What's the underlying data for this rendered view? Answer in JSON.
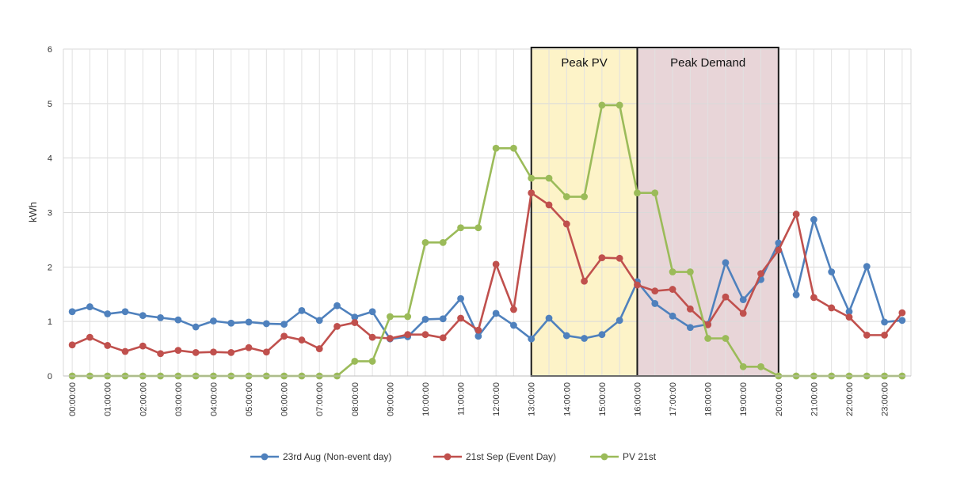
{
  "chart_data": {
    "type": "line",
    "title": "",
    "xlabel": "",
    "ylabel": "kWh",
    "ylim": [
      0,
      6
    ],
    "yticks": [
      "0",
      "1",
      "2",
      "3",
      "4",
      "5",
      "6"
    ],
    "grid": true,
    "legend_position": "bottom",
    "x": [
      "00:00:00",
      "00:30:00",
      "01:00:00",
      "01:30:00",
      "02:00:00",
      "02:30:00",
      "03:00:00",
      "03:30:00",
      "04:00:00",
      "04:30:00",
      "05:00:00",
      "05:30:00",
      "06:00:00",
      "06:30:00",
      "07:00:00",
      "07:30:00",
      "08:00:00",
      "08:30:00",
      "09:00:00",
      "09:30:00",
      "10:00:00",
      "10:30:00",
      "11:00:00",
      "11:30:00",
      "12:00:00",
      "12:30:00",
      "13:00:00",
      "13:30:00",
      "14:00:00",
      "14:30:00",
      "15:00:00",
      "15:30:00",
      "16:00:00",
      "16:30:00",
      "17:00:00",
      "17:30:00",
      "18:00:00",
      "18:30:00",
      "19:00:00",
      "19:30:00",
      "20:00:00",
      "20:30:00",
      "21:00:00",
      "21:30:00",
      "22:00:00",
      "22:30:00",
      "23:00:00",
      "23:30:00"
    ],
    "x_tick_labels": [
      "00:00:00",
      "01:00:00",
      "02:00:00",
      "03:00:00",
      "04:00:00",
      "05:00:00",
      "06:00:00",
      "07:00:00",
      "08:00:00",
      "09:00:00",
      "10:00:00",
      "11:00:00",
      "12:00:00",
      "13:00:00",
      "14:00:00",
      "15:00:00",
      "16:00:00",
      "17:00:00",
      "18:00:00",
      "19:00:00",
      "20:00:00",
      "21:00:00",
      "22:00:00",
      "23:00:00"
    ],
    "series": [
      {
        "name": "23rd Aug (Non-event day)",
        "color": "#4f81bd",
        "values": [
          1.18,
          1.27,
          1.14,
          1.18,
          1.11,
          1.07,
          1.03,
          0.9,
          1.01,
          0.97,
          0.99,
          0.96,
          0.95,
          1.2,
          1.02,
          1.29,
          1.08,
          1.18,
          0.68,
          0.72,
          1.04,
          1.05,
          1.42,
          0.73,
          1.15,
          0.93,
          0.68,
          1.06,
          0.74,
          0.69,
          0.76,
          1.02,
          1.73,
          1.33,
          1.1,
          0.89,
          0.95,
          2.08,
          1.4,
          1.77,
          2.44,
          1.49,
          2.87,
          1.91,
          1.18,
          2.01,
          0.99,
          1.02
        ]
      },
      {
        "name": "21st Sep (Event Day)",
        "color": "#c0504d",
        "values": [
          0.57,
          0.71,
          0.56,
          0.45,
          0.55,
          0.41,
          0.47,
          0.43,
          0.44,
          0.43,
          0.52,
          0.44,
          0.73,
          0.66,
          0.5,
          0.91,
          0.98,
          0.71,
          0.69,
          0.76,
          0.76,
          0.7,
          1.06,
          0.84,
          2.05,
          1.22,
          3.36,
          3.14,
          2.79,
          1.74,
          2.17,
          2.16,
          1.67,
          1.56,
          1.59,
          1.23,
          0.94,
          1.45,
          1.15,
          1.88,
          2.31,
          2.97,
          1.44,
          1.25,
          1.08,
          0.75,
          0.75,
          1.16
        ]
      },
      {
        "name": "PV 21st",
        "color": "#9bbb59",
        "values": [
          0,
          0,
          0,
          0,
          0,
          0,
          0,
          0,
          0,
          0,
          0,
          0,
          0,
          0,
          0,
          0,
          0.27,
          0.27,
          1.09,
          1.09,
          2.45,
          2.45,
          2.72,
          2.72,
          4.18,
          4.18,
          3.63,
          3.63,
          3.29,
          3.29,
          4.97,
          4.97,
          3.36,
          3.36,
          1.91,
          1.91,
          0.69,
          0.69,
          0.17,
          0.17,
          0,
          0,
          0,
          0,
          0,
          0,
          0,
          0
        ]
      }
    ],
    "regions": [
      {
        "label": "Peak PV",
        "from": "13:00:00",
        "to": "16:00:00",
        "fill": "#fdf3c8"
      },
      {
        "label": "Peak Demand",
        "from": "16:00:00",
        "to": "20:00:00",
        "fill": "#e8d5d8"
      }
    ]
  }
}
